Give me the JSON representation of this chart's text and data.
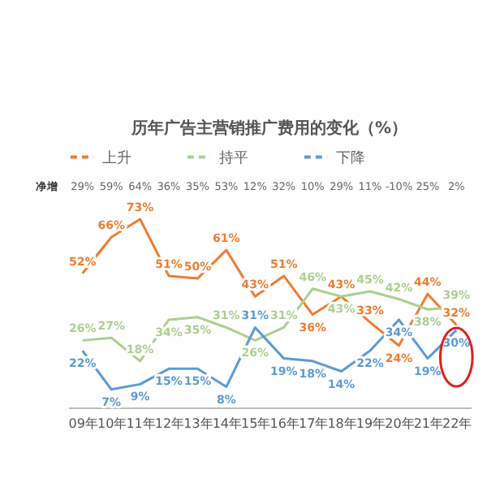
{
  "chart_data": {
    "type": "line",
    "title": "历年广告主营销推广费用的变化（%）",
    "categories": [
      "09年",
      "10年",
      "11年",
      "12年",
      "13年",
      "14年",
      "15年",
      "16年",
      "17年",
      "18年",
      "19年",
      "20年",
      "21年",
      "22年"
    ],
    "series": [
      {
        "name": "上升",
        "color": "#ed7d31",
        "values": [
          52,
          66,
          73,
          51,
          50,
          61,
          43,
          51,
          36,
          43,
          33,
          24,
          44,
          32
        ],
        "value_labels": [
          "52%",
          "66%",
          "73%",
          "51%",
          "50%",
          "61%",
          "43%",
          "51%",
          "36%",
          "43%",
          "33%",
          "24%",
          "44%",
          "32%"
        ]
      },
      {
        "name": "持平",
        "color": "#a9d18e",
        "values": [
          26,
          27,
          18,
          34,
          35,
          31,
          26,
          31,
          46,
          43,
          45,
          42,
          38,
          39
        ],
        "value_labels": [
          "26%",
          "27%",
          "18%",
          "34%",
          "35%",
          "31%",
          "26%",
          "31%",
          "46%",
          "43%",
          "45%",
          "42%",
          "38%",
          "39%"
        ]
      },
      {
        "name": "下降",
        "color": "#5b9bd5",
        "values": [
          22,
          7,
          9,
          15,
          15,
          8,
          31,
          19,
          18,
          14,
          22,
          34,
          19,
          30
        ],
        "value_labels": [
          "22%",
          "7%",
          "9%",
          "15%",
          "15%",
          "8%",
          "31%",
          "19%",
          "18%",
          "14%",
          "22%",
          "34%",
          "19%",
          "30%"
        ]
      }
    ],
    "annotations": [
      "净增",
      "29%",
      "59%",
      "64%",
      "36%",
      "35%",
      "53%",
      "12%",
      "32%",
      "10%",
      "29%",
      "11%",
      "-10%",
      "25%",
      "2%"
    ],
    "legend": "top",
    "marker": "none",
    "line_style": "solid"
  }
}
